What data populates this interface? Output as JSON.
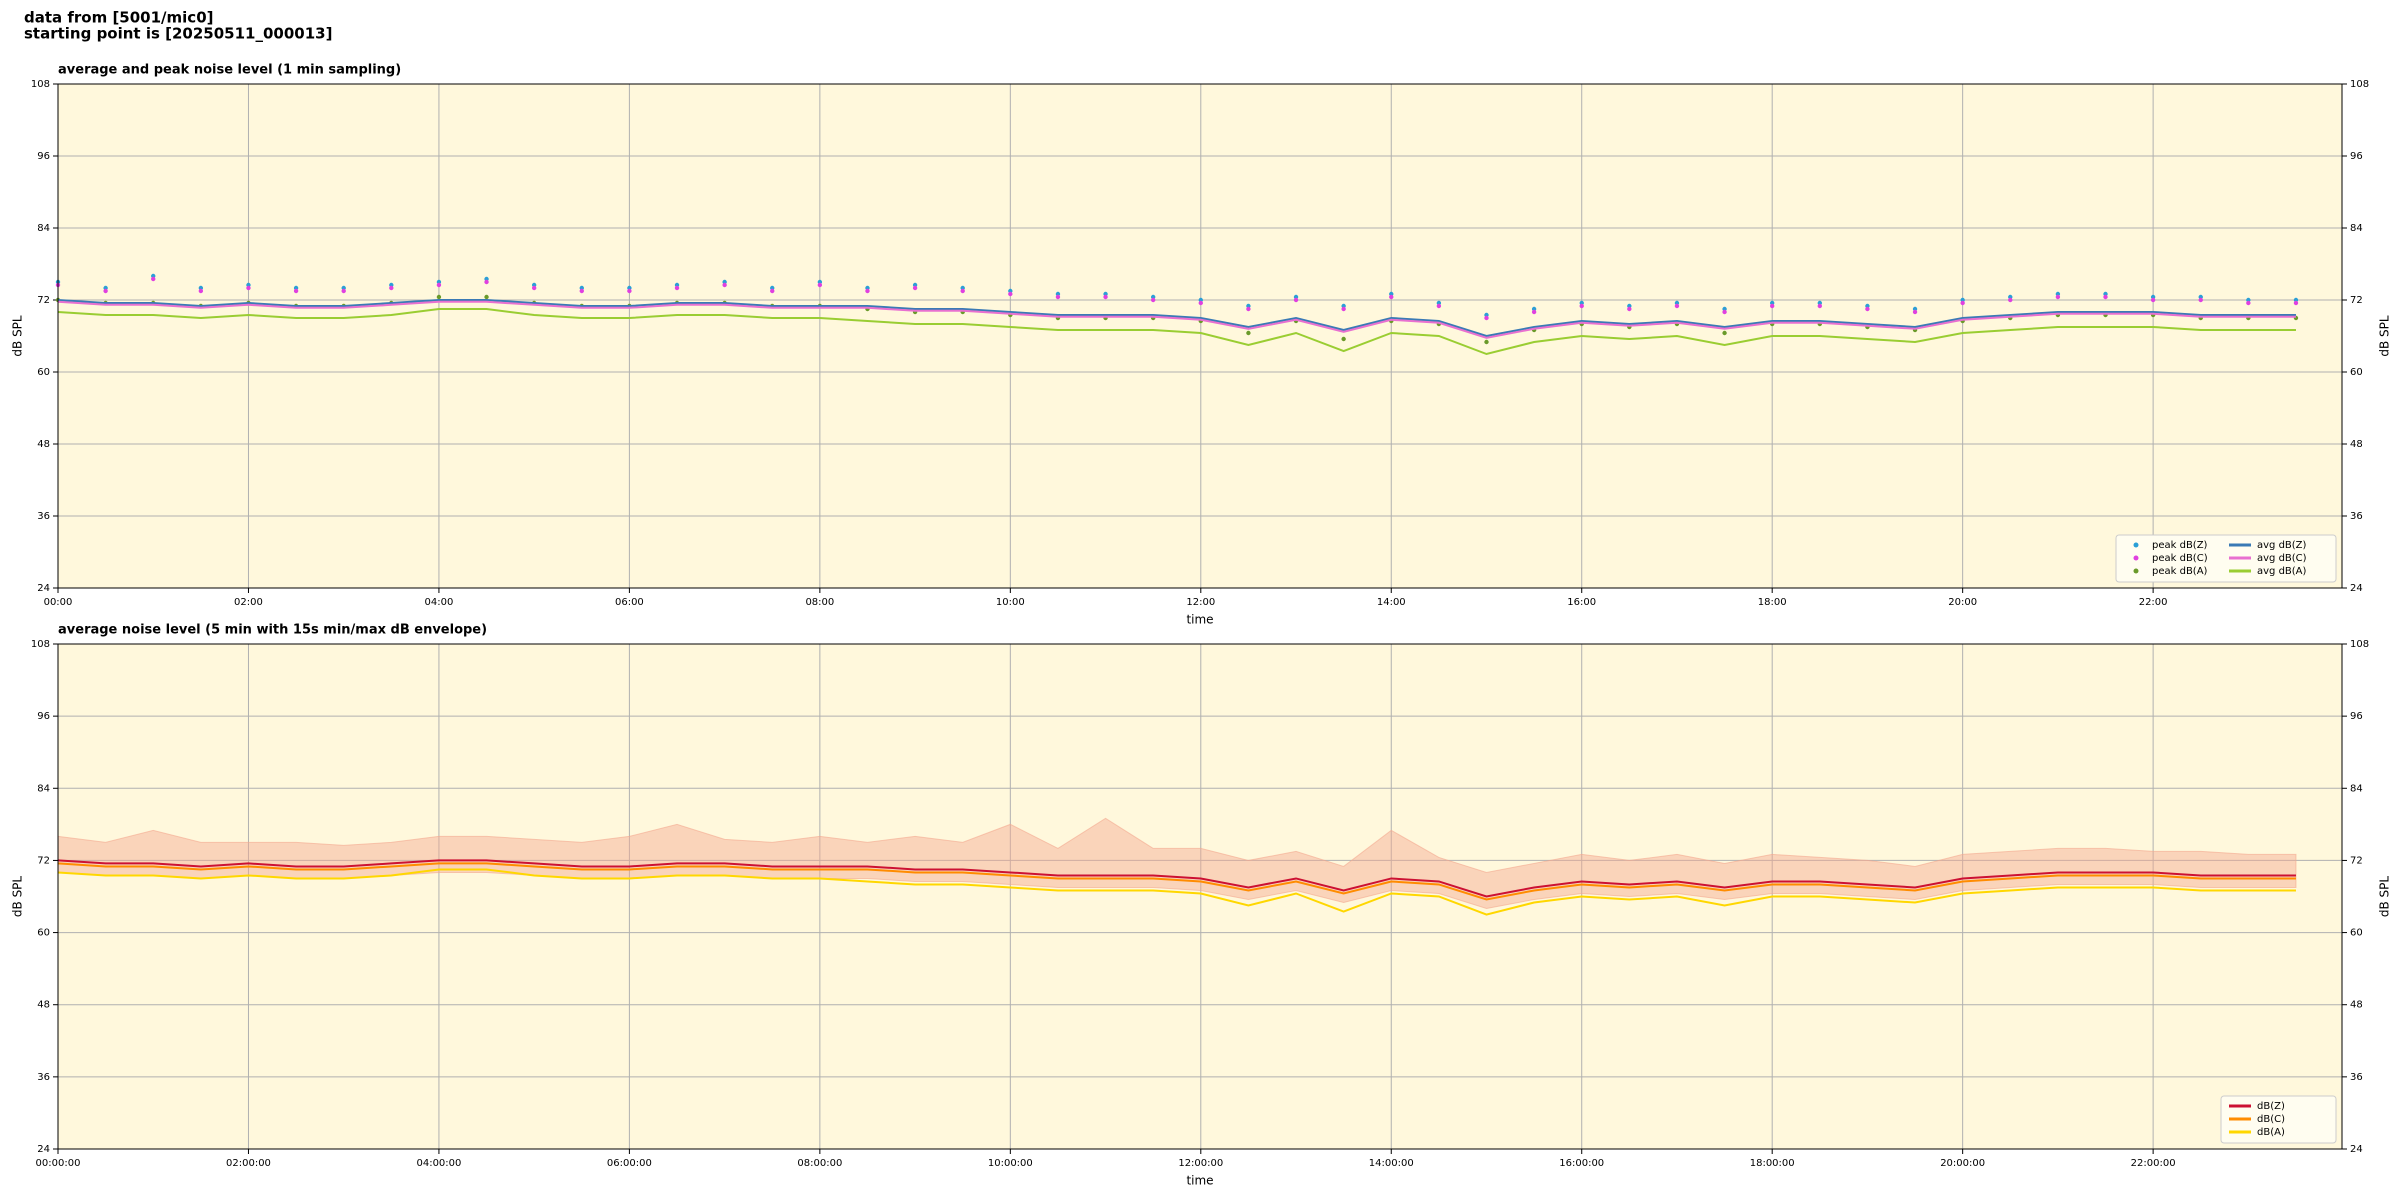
{
  "header": {
    "lines": [
      "data from [5001/mic0]",
      "starting point is [20250511_000013]"
    ]
  },
  "chart_data": [
    {
      "type": "line",
      "title": "average and peak noise level (1 min sampling)",
      "xlabel": "time",
      "ylabel": "dB SPL",
      "xlim": [
        "00:00",
        "23:59"
      ],
      "ylim": [
        24,
        108
      ],
      "yticks": [
        24,
        36,
        48,
        60,
        72,
        84,
        96,
        108
      ],
      "xticks": [
        "00:00",
        "02:00",
        "04:00",
        "06:00",
        "08:00",
        "10:00",
        "12:00",
        "14:00",
        "16:00",
        "18:00",
        "20:00",
        "22:00"
      ],
      "grid": true,
      "legend": "lower right",
      "background": "#fff8dc",
      "x": [
        "00:00",
        "00:30",
        "01:00",
        "01:30",
        "02:00",
        "02:30",
        "03:00",
        "03:30",
        "04:00",
        "04:30",
        "05:00",
        "05:30",
        "06:00",
        "06:30",
        "07:00",
        "07:30",
        "08:00",
        "08:30",
        "09:00",
        "09:30",
        "10:00",
        "10:30",
        "11:00",
        "11:30",
        "12:00",
        "12:30",
        "13:00",
        "13:30",
        "14:00",
        "14:30",
        "15:00",
        "15:30",
        "16:00",
        "16:30",
        "17:00",
        "17:30",
        "18:00",
        "18:30",
        "19:00",
        "19:30",
        "20:00",
        "20:30",
        "21:00",
        "21:30",
        "22:00",
        "22:30",
        "23:00",
        "23:30"
      ],
      "series": [
        {
          "name": "peak dB(Z)",
          "type": "scatter",
          "color": "#2a9fd6",
          "values": [
            75,
            74,
            76,
            74,
            74.5,
            74,
            74,
            74.5,
            75,
            75.5,
            74.5,
            74,
            74,
            74.5,
            75,
            74,
            75,
            74,
            74.5,
            74,
            73.5,
            73,
            73,
            72.5,
            72,
            71,
            72.5,
            71,
            73,
            71.5,
            69.5,
            70.5,
            71.5,
            71,
            71.5,
            70.5,
            71.5,
            71.5,
            71,
            70.5,
            72,
            72.5,
            73,
            73,
            72.5,
            72.5,
            72,
            72
          ]
        },
        {
          "name": "peak dB(C)",
          "type": "scatter",
          "color": "#e040e0",
          "values": [
            74.5,
            73.5,
            75.5,
            73.5,
            74,
            73.5,
            73.5,
            74,
            74.5,
            75,
            74,
            73.5,
            73.5,
            74,
            74.5,
            73.5,
            74.5,
            73.5,
            74,
            73.5,
            73,
            72.5,
            72.5,
            72,
            71.5,
            70.5,
            72,
            70.5,
            72.5,
            71,
            69,
            70,
            71,
            70.5,
            71,
            70,
            71,
            71,
            70.5,
            70,
            71.5,
            72,
            72.5,
            72.5,
            72,
            72,
            71.5,
            71.5
          ]
        },
        {
          "name": "peak dB(A)",
          "type": "scatter",
          "color": "#6a9a2a",
          "values": [
            72,
            71.5,
            71.5,
            71,
            71.5,
            71,
            71,
            71.5,
            72.5,
            72.5,
            71.5,
            71,
            71,
            71.5,
            71.5,
            71,
            71,
            70.5,
            70,
            70,
            69.5,
            69,
            69,
            69,
            68.5,
            66.5,
            68.5,
            65.5,
            68.5,
            68,
            65,
            67,
            68,
            67.5,
            68,
            66.5,
            68,
            68,
            67.5,
            67,
            68.5,
            69,
            69.5,
            69.5,
            69.5,
            69,
            69,
            69
          ]
        },
        {
          "name": "avg dB(Z)",
          "type": "line",
          "color": "#3a7ab5",
          "values": [
            72,
            71.5,
            71.5,
            71,
            71.5,
            71,
            71,
            71.5,
            72,
            72,
            71.5,
            71,
            71,
            71.5,
            71.5,
            71,
            71,
            71,
            70.5,
            70.5,
            70,
            69.5,
            69.5,
            69.5,
            69,
            67.5,
            69,
            67,
            69,
            68.5,
            66,
            67.5,
            68.5,
            68,
            68.5,
            67.5,
            68.5,
            68.5,
            68,
            67.5,
            69,
            69.5,
            70,
            70,
            70,
            69.5,
            69.5,
            69.5
          ]
        },
        {
          "name": "avg dB(C)",
          "type": "line",
          "color": "#e870d0",
          "values": [
            71.7,
            71.2,
            71.2,
            70.7,
            71.2,
            70.7,
            70.7,
            71.2,
            71.7,
            71.7,
            71.2,
            70.7,
            70.7,
            71.2,
            71.2,
            70.7,
            70.7,
            70.7,
            70.2,
            70.2,
            69.7,
            69.2,
            69.2,
            69.2,
            68.7,
            67.2,
            68.7,
            66.7,
            68.7,
            68.2,
            65.7,
            67.2,
            68.2,
            67.7,
            68.2,
            67.2,
            68.2,
            68.2,
            67.7,
            67.2,
            68.7,
            69.2,
            69.7,
            69.7,
            69.7,
            69.2,
            69.2,
            69.2
          ]
        },
        {
          "name": "avg dB(A)",
          "type": "line",
          "color": "#9acd32",
          "values": [
            70,
            69.5,
            69.5,
            69,
            69.5,
            69,
            69,
            69.5,
            70.5,
            70.5,
            69.5,
            69,
            69,
            69.5,
            69.5,
            69,
            69,
            68.5,
            68,
            68,
            67.5,
            67,
            67,
            67,
            66.5,
            64.5,
            66.5,
            63.5,
            66.5,
            66,
            63,
            65,
            66,
            65.5,
            66,
            64.5,
            66,
            66,
            65.5,
            65,
            66.5,
            67,
            67.5,
            67.5,
            67.5,
            67,
            67,
            67
          ]
        }
      ]
    },
    {
      "type": "line",
      "title": "average noise level (5 min with 15s min/max dB envelope)",
      "xlabel": "time",
      "ylabel": "dB SPL",
      "xlim": [
        "00:00:00",
        "23:59:00"
      ],
      "ylim": [
        24,
        108
      ],
      "yticks": [
        24,
        36,
        48,
        60,
        72,
        84,
        96,
        108
      ],
      "xticks": [
        "00:00:00",
        "02:00:00",
        "04:00:00",
        "06:00:00",
        "08:00:00",
        "10:00:00",
        "12:00:00",
        "14:00:00",
        "16:00:00",
        "18:00:00",
        "20:00:00",
        "22:00:00"
      ],
      "grid": true,
      "legend": "lower right",
      "background": "#fff8dc",
      "x": [
        "00:00:00",
        "00:30:00",
        "01:00:00",
        "01:30:00",
        "02:00:00",
        "02:30:00",
        "03:00:00",
        "03:30:00",
        "04:00:00",
        "04:30:00",
        "05:00:00",
        "05:30:00",
        "06:00:00",
        "06:30:00",
        "07:00:00",
        "07:30:00",
        "08:00:00",
        "08:30:00",
        "09:00:00",
        "09:30:00",
        "10:00:00",
        "10:30:00",
        "11:00:00",
        "11:30:00",
        "12:00:00",
        "12:30:00",
        "13:00:00",
        "13:30:00",
        "14:00:00",
        "14:30:00",
        "15:00:00",
        "15:30:00",
        "16:00:00",
        "16:30:00",
        "17:00:00",
        "17:30:00",
        "18:00:00",
        "18:30:00",
        "19:00:00",
        "19:30:00",
        "20:00:00",
        "20:30:00",
        "21:00:00",
        "21:30:00",
        "22:00:00",
        "22:30:00",
        "23:00:00",
        "23:30:00"
      ],
      "envelope": {
        "color": "#f4a890",
        "max": [
          76,
          75,
          77,
          75,
          75,
          75,
          74.5,
          75,
          76,
          76,
          75.5,
          75,
          76,
          78,
          75.5,
          75,
          76,
          75,
          76,
          75,
          78,
          74,
          79,
          74,
          74,
          72,
          73.5,
          71,
          77,
          72.5,
          70,
          71.5,
          73,
          72,
          73,
          71.5,
          73,
          72.5,
          72,
          71,
          73,
          73.5,
          74,
          74,
          73.5,
          73.5,
          73,
          73
        ],
        "min": [
          70,
          69.5,
          69.5,
          69,
          69.5,
          69,
          69,
          69.5,
          70,
          70,
          69.5,
          69,
          69,
          69.5,
          69.5,
          69,
          69,
          69,
          68.5,
          68.5,
          68,
          67.5,
          67.5,
          67.5,
          67,
          65.5,
          67,
          65,
          67,
          66.5,
          64,
          65.5,
          66.5,
          66,
          66.5,
          65.5,
          66.5,
          66.5,
          66,
          65.5,
          67,
          67.5,
          68,
          68,
          68,
          67.5,
          67.5,
          67.5
        ]
      },
      "series": [
        {
          "name": "dB(Z)",
          "type": "line",
          "color": "#cc1133",
          "values": [
            72,
            71.5,
            71.5,
            71,
            71.5,
            71,
            71,
            71.5,
            72,
            72,
            71.5,
            71,
            71,
            71.5,
            71.5,
            71,
            71,
            71,
            70.5,
            70.5,
            70,
            69.5,
            69.5,
            69.5,
            69,
            67.5,
            69,
            67,
            69,
            68.5,
            66,
            67.5,
            68.5,
            68,
            68.5,
            67.5,
            68.5,
            68.5,
            68,
            67.5,
            69,
            69.5,
            70,
            70,
            70,
            69.5,
            69.5,
            69.5
          ]
        },
        {
          "name": "dB(C)",
          "type": "line",
          "color": "#ff8c00",
          "values": [
            71.5,
            71,
            71,
            70.5,
            71,
            70.5,
            70.5,
            71,
            71.5,
            71.5,
            71,
            70.5,
            70.5,
            71,
            71,
            70.5,
            70.5,
            70.5,
            70,
            70,
            69.5,
            69,
            69,
            69,
            68.5,
            67,
            68.5,
            66.5,
            68.5,
            68,
            65.5,
            67,
            68,
            67.5,
            68,
            67,
            68,
            68,
            67.5,
            67,
            68.5,
            69,
            69.5,
            69.5,
            69.5,
            69,
            69,
            69
          ]
        },
        {
          "name": "dB(A)",
          "type": "line",
          "color": "#ffd700",
          "values": [
            70,
            69.5,
            69.5,
            69,
            69.5,
            69,
            69,
            69.5,
            70.5,
            70.5,
            69.5,
            69,
            69,
            69.5,
            69.5,
            69,
            69,
            68.5,
            68,
            68,
            67.5,
            67,
            67,
            67,
            66.5,
            64.5,
            66.5,
            63.5,
            66.5,
            66,
            63,
            65,
            66,
            65.5,
            66,
            64.5,
            66,
            66,
            65.5,
            65,
            66.5,
            67,
            67.5,
            67.5,
            67.5,
            67,
            67,
            67
          ]
        }
      ]
    }
  ]
}
